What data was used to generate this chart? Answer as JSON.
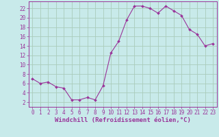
{
  "x": [
    0,
    1,
    2,
    3,
    4,
    5,
    6,
    7,
    8,
    9,
    10,
    11,
    12,
    13,
    14,
    15,
    16,
    17,
    18,
    19,
    20,
    21,
    22,
    23
  ],
  "y": [
    7,
    6,
    6.3,
    5.3,
    5,
    2.5,
    2.5,
    3,
    2.5,
    5.5,
    12.5,
    15,
    19.5,
    22.5,
    22.5,
    22,
    21,
    22.5,
    21.5,
    20.5,
    17.5,
    16.5,
    14,
    14.5
  ],
  "line_color": "#993399",
  "marker": "D",
  "marker_size": 2,
  "bg_color": "#c8eaea",
  "grid_color": "#aaccbb",
  "xlabel": "Windchill (Refroidissement éolien,°C)",
  "yticks": [
    2,
    4,
    6,
    8,
    10,
    12,
    14,
    16,
    18,
    20,
    22
  ],
  "xticks": [
    0,
    1,
    2,
    3,
    4,
    5,
    6,
    7,
    8,
    9,
    10,
    11,
    12,
    13,
    14,
    15,
    16,
    17,
    18,
    19,
    20,
    21,
    22,
    23
  ],
  "ylim": [
    1,
    23.5
  ],
  "xlim": [
    -0.5,
    23.5
  ],
  "font_color": "#993399",
  "tick_label_size": 5.5,
  "xlabel_size": 6.5
}
